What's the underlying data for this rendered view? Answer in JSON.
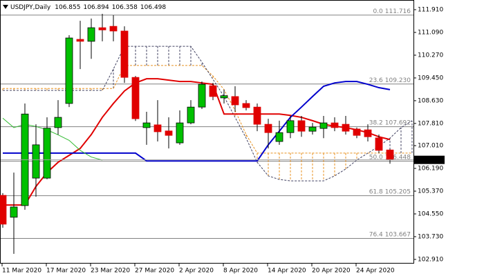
{
  "chart_data": {
    "type": "candlestick",
    "symbol": "USDJPY,Daily",
    "categories": [
      "11 Mar 2020",
      null,
      null,
      null,
      "17 Mar 2020",
      null,
      null,
      null,
      "23 Mar 2020",
      null,
      null,
      null,
      "27 Mar 2020",
      null,
      null,
      null,
      "2 Apr 2020",
      null,
      null,
      null,
      "8 Apr 2020",
      null,
      null,
      null,
      "14 Apr 2020",
      null,
      null,
      null,
      "20 Apr 2020",
      null,
      null,
      null,
      "24 Apr 2020",
      null,
      null,
      null,
      null,
      null
    ],
    "open": [
      105.22,
      104.43,
      104.85,
      105.84,
      105.84,
      107.66,
      108.53,
      110.84,
      110.77,
      111.26,
      111.31,
      111.14,
      109.47,
      107.66,
      107.76,
      107.54,
      107.11,
      107.83,
      108.4,
      109.17,
      108.73,
      108.78,
      108.53,
      108.4,
      107.78,
      107.16,
      107.48,
      107.91,
      107.53,
      107.63,
      107.83,
      107.78,
      107.61,
      107.58,
      107.29,
      106.855,
      null,
      null
    ],
    "high": [
      105.3,
      106.04,
      108.53,
      107.78,
      108.03,
      108.65,
      110.99,
      111.51,
      111.59,
      111.76,
      111.71,
      111.31,
      109.52,
      108.23,
      108.65,
      108.03,
      108.28,
      108.65,
      109.32,
      109.27,
      109.03,
      109.15,
      108.65,
      108.53,
      107.98,
      107.91,
      108.08,
      108.08,
      107.83,
      108.08,
      108.03,
      108.08,
      107.66,
      107.78,
      107.41,
      106.894,
      null,
      null
    ],
    "low": [
      104.05,
      103.11,
      104.7,
      105.17,
      105.8,
      107.41,
      108.4,
      109.77,
      110.14,
      110.77,
      110.77,
      109.27,
      107.9,
      107.04,
      107.16,
      106.91,
      107.04,
      107.78,
      108.33,
      108.65,
      108.53,
      108.23,
      108.28,
      107.53,
      106.91,
      107.04,
      107.28,
      107.33,
      107.41,
      107.28,
      107.53,
      107.41,
      107.28,
      107.16,
      106.74,
      106.358,
      null,
      null
    ],
    "close": [
      104.18,
      104.8,
      108.15,
      107.04,
      107.64,
      108.03,
      110.89,
      110.77,
      111.26,
      111.18,
      111.14,
      109.47,
      107.98,
      107.83,
      107.51,
      107.38,
      107.83,
      108.4,
      109.22,
      108.78,
      108.81,
      108.48,
      108.38,
      107.78,
      107.48,
      107.48,
      107.91,
      107.53,
      107.68,
      107.83,
      107.66,
      107.53,
      107.38,
      107.33,
      106.84,
      106.498,
      null,
      null
    ],
    "up_color": "#00c000",
    "down_color": "#e00000",
    "lines": [
      {
        "color": "#e00000",
        "width": 2,
        "values": [
          104.87,
          104.87,
          104.87,
          105.54,
          106.04,
          106.41,
          106.66,
          106.91,
          107.41,
          108.03,
          108.53,
          108.98,
          109.27,
          109.42,
          109.42,
          109.37,
          109.32,
          109.32,
          109.27,
          109.22,
          108.15,
          108.15,
          108.15,
          108.15,
          108.15,
          108.15,
          108.1,
          108.03,
          107.91,
          107.78,
          107.71,
          107.66,
          107.58,
          107.48,
          107.33,
          107.23,
          null,
          null
        ]
      },
      {
        "color": "#0000cc",
        "width": 2,
        "values": [
          106.74,
          106.74,
          106.74,
          106.74,
          106.74,
          106.74,
          106.74,
          106.74,
          106.74,
          106.74,
          106.74,
          106.74,
          106.74,
          106.46,
          106.46,
          106.46,
          106.46,
          106.46,
          106.46,
          106.46,
          106.46,
          106.46,
          106.46,
          106.46,
          107.04,
          107.53,
          108.03,
          108.4,
          108.78,
          109.15,
          109.27,
          109.32,
          109.32,
          109.22,
          109.1,
          109.03,
          null,
          null
        ]
      },
      {
        "color": "#33bb33",
        "width": 1,
        "values": [
          108.0,
          107.66,
          107.78,
          107.7,
          107.58,
          107.4,
          107.2,
          106.84,
          106.6,
          106.49,
          null,
          null,
          null,
          null,
          null,
          null,
          null,
          null,
          null,
          null,
          null,
          null,
          null,
          null,
          null,
          null,
          null,
          null,
          null,
          null,
          null,
          null,
          null,
          null,
          null,
          null,
          null,
          null
        ]
      }
    ],
    "cloud": {
      "a": {
        "color": "#e8901c",
        "values": [
          109.07,
          109.07,
          109.07,
          109.07,
          109.07,
          109.07,
          109.07,
          109.07,
          109.07,
          109.07,
          109.07,
          109.9,
          109.9,
          109.9,
          109.9,
          109.9,
          109.9,
          109.9,
          109.9,
          109.52,
          109.03,
          108.28,
          107.41,
          106.74,
          106.74,
          106.74,
          106.74,
          106.74,
          106.74,
          106.74,
          106.74,
          106.74,
          106.74,
          106.74,
          106.74,
          106.74,
          106.74,
          106.74
        ]
      },
      "b": {
        "color": "#404060",
        "values": [
          109.0,
          109.0,
          109.0,
          109.0,
          109.0,
          109.0,
          109.0,
          109.0,
          109.0,
          109.0,
          109.77,
          110.59,
          110.59,
          110.59,
          110.59,
          110.59,
          110.59,
          110.59,
          110.02,
          109.4,
          108.78,
          108.03,
          107.28,
          106.41,
          105.92,
          105.79,
          105.74,
          105.74,
          105.74,
          105.74,
          105.92,
          106.17,
          106.49,
          106.74,
          106.99,
          107.28,
          107.66,
          107.91
        ]
      }
    },
    "fib_levels": [
      {
        "ratio": "0.0",
        "price": 111.716
      },
      {
        "ratio": "23.6",
        "price": {
          "value": 109.23,
          "label": "109.230"
        }
      },
      {
        "ratio": "38.2",
        "price": 107.692
      },
      {
        "ratio": "50.0",
        "price": 106.448
      },
      {
        "ratio": "61.8",
        "price": 105.205
      },
      {
        "ratio": "76.4",
        "price": 103.667
      }
    ],
    "fib_color": "#808080",
    "ylim": [
      102.76,
      112.159
    ],
    "yticks": [
      {
        "value": 111.91,
        "label": "111.910"
      },
      {
        "value": 111.09,
        "label": "111.090"
      },
      {
        "value": 110.27,
        "label": "110.270"
      },
      {
        "value": 109.45,
        "label": "109.450"
      },
      {
        "value": 108.63,
        "label": "108.630"
      },
      {
        "value": 107.81,
        "label": "107.810"
      },
      {
        "value": 107.01,
        "label": "107.010"
      },
      {
        "value": 106.19,
        "label": "106.190"
      },
      {
        "value": 105.37,
        "label": "105.370"
      },
      {
        "value": 104.55,
        "label": "104.550"
      },
      {
        "value": 103.73,
        "label": "103.730"
      },
      {
        "value": 102.91,
        "label": "102.910"
      }
    ]
  }
}
